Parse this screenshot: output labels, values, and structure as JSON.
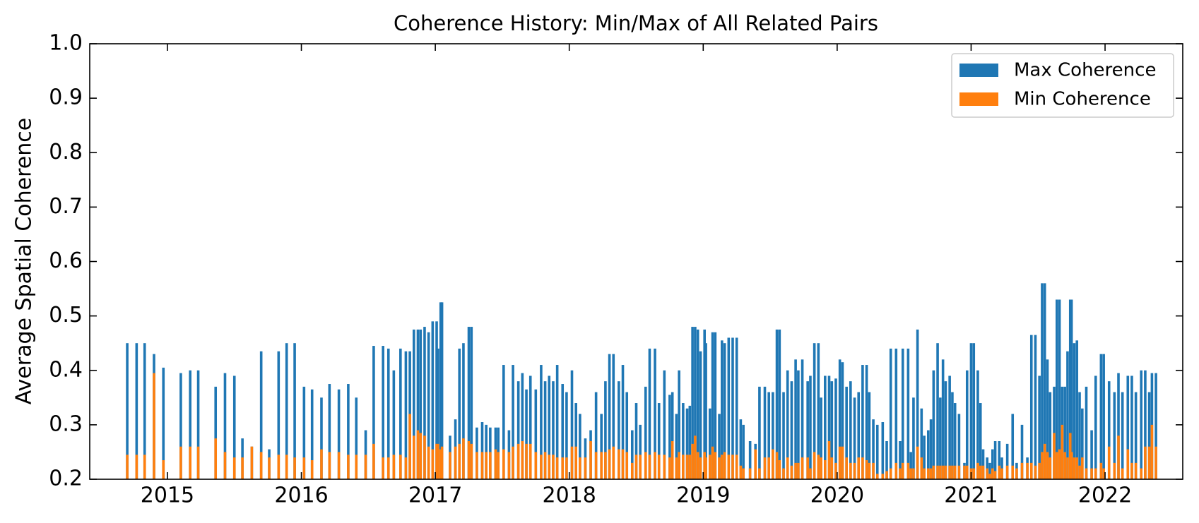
{
  "chart_data": {
    "type": "bar",
    "title": "Coherence History: Min/Max of All Related Pairs",
    "y_label": "Average Spatial Coherence",
    "x": [
      2014.7,
      2014.77,
      2014.83,
      2014.9,
      2014.97,
      2015.1,
      2015.17,
      2015.23,
      2015.36,
      2015.43,
      2015.5,
      2015.56,
      2015.63,
      2015.7,
      2015.76,
      2015.83,
      2015.89,
      2015.95,
      2016.02,
      2016.08,
      2016.15,
      2016.21,
      2016.28,
      2016.35,
      2016.41,
      2016.48,
      2016.54,
      2016.61,
      2016.65,
      2016.69,
      2016.74,
      2016.78,
      2016.81,
      2016.84,
      2016.87,
      2016.89,
      2016.92,
      2016.95,
      2016.98,
      2017.01,
      2017.02,
      2017.04,
      2017.05,
      2017.11,
      2017.15,
      2017.18,
      2017.21,
      2017.25,
      2017.27,
      2017.31,
      2017.35,
      2017.38,
      2017.41,
      2017.45,
      2017.47,
      2017.51,
      2017.55,
      2017.58,
      2017.62,
      2017.65,
      2017.68,
      2017.71,
      2017.75,
      2017.79,
      2017.82,
      2017.85,
      2017.88,
      2017.91,
      2017.95,
      2017.98,
      2018.02,
      2018.05,
      2018.08,
      2018.12,
      2018.16,
      2018.2,
      2018.24,
      2018.27,
      2018.3,
      2018.33,
      2018.37,
      2018.4,
      2018.43,
      2018.47,
      2018.5,
      2018.53,
      2018.57,
      2018.6,
      2018.64,
      2018.67,
      2018.71,
      2018.75,
      2018.77,
      2018.8,
      2018.82,
      2018.85,
      2018.88,
      2018.9,
      2018.92,
      2018.94,
      2018.96,
      2018.98,
      2019.01,
      2019.02,
      2019.05,
      2019.07,
      2019.09,
      2019.12,
      2019.14,
      2019.16,
      2019.19,
      2019.22,
      2019.25,
      2019.28,
      2019.3,
      2019.35,
      2019.39,
      2019.42,
      2019.46,
      2019.49,
      2019.52,
      2019.55,
      2019.57,
      2019.6,
      2019.63,
      2019.66,
      2019.69,
      2019.71,
      2019.74,
      2019.78,
      2019.8,
      2019.83,
      2019.86,
      2019.88,
      2019.91,
      2019.94,
      2019.96,
      2019.99,
      2020.02,
      2020.04,
      2020.07,
      2020.1,
      2020.13,
      2020.16,
      2020.19,
      2020.22,
      2020.24,
      2020.27,
      2020.3,
      2020.34,
      2020.37,
      2020.4,
      2020.44,
      2020.47,
      2020.49,
      2020.53,
      2020.55,
      2020.57,
      2020.6,
      2020.63,
      2020.65,
      2020.68,
      2020.7,
      2020.72,
      2020.75,
      2020.77,
      2020.79,
      2020.81,
      2020.84,
      2020.86,
      2020.88,
      2020.91,
      2020.95,
      2020.97,
      2021.0,
      2021.02,
      2021.05,
      2021.07,
      2021.09,
      2021.12,
      2021.14,
      2021.16,
      2021.18,
      2021.21,
      2021.23,
      2021.27,
      2021.31,
      2021.34,
      2021.38,
      2021.42,
      2021.45,
      2021.48,
      2021.51,
      2021.53,
      2021.55,
      2021.57,
      2021.59,
      2021.62,
      2021.64,
      2021.66,
      2021.68,
      2021.7,
      2021.72,
      2021.74,
      2021.75,
      2021.77,
      2021.79,
      2021.81,
      2021.83,
      2021.86,
      2021.9,
      2021.93,
      2021.97,
      2021.99,
      2022.03,
      2022.07,
      2022.1,
      2022.13,
      2022.17,
      2022.2,
      2022.23,
      2022.27,
      2022.3,
      2022.33,
      2022.35,
      2022.38
    ],
    "series": [
      {
        "name": "Max Coherence",
        "color": "#1f77b4",
        "values": [
          0.45,
          0.45,
          0.45,
          0.43,
          0.405,
          0.395,
          0.4,
          0.4,
          0.37,
          0.395,
          0.39,
          0.275,
          0.26,
          0.435,
          0.255,
          0.435,
          0.45,
          0.45,
          0.37,
          0.365,
          0.35,
          0.375,
          0.365,
          0.375,
          0.35,
          0.29,
          0.445,
          0.445,
          0.44,
          0.4,
          0.44,
          0.435,
          0.435,
          0.475,
          0.475,
          0.475,
          0.48,
          0.47,
          0.49,
          0.49,
          0.44,
          0.525,
          0.525,
          0.28,
          0.31,
          0.44,
          0.45,
          0.48,
          0.48,
          0.295,
          0.305,
          0.3,
          0.295,
          0.295,
          0.295,
          0.41,
          0.29,
          0.41,
          0.38,
          0.395,
          0.365,
          0.39,
          0.365,
          0.41,
          0.38,
          0.39,
          0.38,
          0.41,
          0.375,
          0.36,
          0.4,
          0.34,
          0.32,
          0.275,
          0.29,
          0.36,
          0.32,
          0.38,
          0.43,
          0.43,
          0.38,
          0.41,
          0.36,
          0.29,
          0.34,
          0.3,
          0.37,
          0.44,
          0.44,
          0.34,
          0.4,
          0.355,
          0.36,
          0.32,
          0.4,
          0.34,
          0.33,
          0.335,
          0.48,
          0.48,
          0.475,
          0.435,
          0.475,
          0.45,
          0.33,
          0.47,
          0.47,
          0.32,
          0.455,
          0.45,
          0.46,
          0.46,
          0.46,
          0.31,
          0.3,
          0.27,
          0.265,
          0.37,
          0.37,
          0.36,
          0.36,
          0.475,
          0.475,
          0.36,
          0.4,
          0.38,
          0.42,
          0.4,
          0.42,
          0.38,
          0.39,
          0.45,
          0.45,
          0.35,
          0.39,
          0.39,
          0.38,
          0.385,
          0.42,
          0.415,
          0.37,
          0.38,
          0.35,
          0.36,
          0.41,
          0.41,
          0.36,
          0.31,
          0.3,
          0.305,
          0.27,
          0.44,
          0.44,
          0.27,
          0.44,
          0.44,
          0.25,
          0.35,
          0.475,
          0.33,
          0.28,
          0.29,
          0.31,
          0.4,
          0.45,
          0.35,
          0.42,
          0.38,
          0.39,
          0.36,
          0.34,
          0.32,
          0.23,
          0.4,
          0.45,
          0.45,
          0.4,
          0.34,
          0.255,
          0.24,
          0.23,
          0.255,
          0.27,
          0.27,
          0.24,
          0.265,
          0.32,
          0.23,
          0.3,
          0.24,
          0.465,
          0.465,
          0.39,
          0.56,
          0.56,
          0.42,
          0.36,
          0.37,
          0.53,
          0.53,
          0.37,
          0.37,
          0.435,
          0.53,
          0.53,
          0.45,
          0.455,
          0.36,
          0.33,
          0.37,
          0.29,
          0.39,
          0.43,
          0.43,
          0.38,
          0.36,
          0.395,
          0.36,
          0.39,
          0.39,
          0.36,
          0.4,
          0.4,
          0.36,
          0.395,
          0.395
        ]
      },
      {
        "name": "Min Coherence",
        "color": "#ff7f0e",
        "values": [
          0.245,
          0.245,
          0.245,
          0.395,
          0.235,
          0.26,
          0.26,
          0.26,
          0.275,
          0.25,
          0.24,
          0.24,
          0.26,
          0.25,
          0.24,
          0.245,
          0.245,
          0.24,
          0.24,
          0.235,
          0.255,
          0.25,
          0.25,
          0.245,
          0.245,
          0.245,
          0.265,
          0.24,
          0.24,
          0.245,
          0.245,
          0.24,
          0.32,
          0.28,
          0.29,
          0.285,
          0.28,
          0.26,
          0.255,
          0.265,
          0.265,
          0.255,
          0.26,
          0.25,
          0.26,
          0.265,
          0.275,
          0.27,
          0.265,
          0.25,
          0.25,
          0.25,
          0.25,
          0.255,
          0.25,
          0.255,
          0.25,
          0.26,
          0.265,
          0.27,
          0.265,
          0.265,
          0.25,
          0.245,
          0.25,
          0.245,
          0.245,
          0.24,
          0.24,
          0.24,
          0.26,
          0.26,
          0.24,
          0.24,
          0.27,
          0.25,
          0.25,
          0.25,
          0.255,
          0.26,
          0.255,
          0.255,
          0.25,
          0.23,
          0.245,
          0.245,
          0.25,
          0.245,
          0.25,
          0.245,
          0.245,
          0.24,
          0.27,
          0.24,
          0.25,
          0.245,
          0.245,
          0.245,
          0.265,
          0.28,
          0.25,
          0.24,
          0.25,
          0.24,
          0.245,
          0.26,
          0.25,
          0.24,
          0.245,
          0.25,
          0.245,
          0.245,
          0.245,
          0.225,
          0.22,
          0.22,
          0.255,
          0.22,
          0.24,
          0.24,
          0.255,
          0.25,
          0.235,
          0.22,
          0.24,
          0.225,
          0.23,
          0.23,
          0.24,
          0.24,
          0.22,
          0.25,
          0.245,
          0.24,
          0.235,
          0.27,
          0.24,
          0.23,
          0.26,
          0.26,
          0.24,
          0.23,
          0.23,
          0.24,
          0.24,
          0.235,
          0.23,
          0.23,
          0.21,
          0.21,
          0.215,
          0.22,
          0.23,
          0.22,
          0.23,
          0.23,
          0.22,
          0.22,
          0.26,
          0.24,
          0.22,
          0.22,
          0.22,
          0.225,
          0.225,
          0.225,
          0.225,
          0.225,
          0.225,
          0.225,
          0.225,
          0.225,
          0.225,
          0.225,
          0.22,
          0.22,
          0.23,
          0.225,
          0.225,
          0.22,
          0.21,
          0.22,
          0.215,
          0.225,
          0.22,
          0.225,
          0.225,
          0.22,
          0.23,
          0.23,
          0.23,
          0.225,
          0.23,
          0.25,
          0.265,
          0.25,
          0.24,
          0.285,
          0.25,
          0.255,
          0.3,
          0.25,
          0.24,
          0.285,
          0.25,
          0.24,
          0.24,
          0.225,
          0.24,
          0.22,
          0.22,
          0.22,
          0.23,
          0.22,
          0.26,
          0.23,
          0.28,
          0.22,
          0.255,
          0.23,
          0.23,
          0.22,
          0.26,
          0.26,
          0.3,
          0.26
        ]
      }
    ],
    "xlim": [
      2014.42,
      2022.58
    ],
    "xticks": [
      2015,
      2016,
      2017,
      2018,
      2019,
      2020,
      2021,
      2022
    ],
    "ylim": [
      0.2,
      1.0
    ],
    "yticks": [
      0.2,
      0.3,
      0.4,
      0.5,
      0.6,
      0.7,
      0.8,
      0.9,
      {
        "value": 1.0,
        "label": "1.0"
      }
    ],
    "legend": "upper right",
    "grid": false
  }
}
